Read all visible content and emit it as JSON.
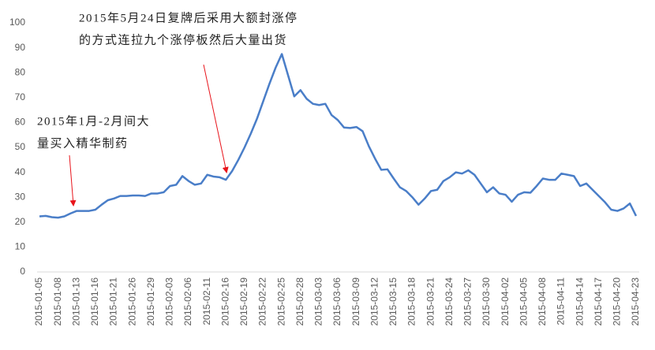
{
  "chart_data": {
    "type": "line",
    "annotations": [
      [
        "2015年5月24日复牌后采用大额封涨停",
        "的方式连拉九个涨停板然后大量出货"
      ],
      [
        "2015年1月-2月间大",
        "量买入精华制药"
      ]
    ],
    "categories": [
      "2015-01-05",
      null,
      null,
      "2015-01-08",
      null,
      null,
      "2015-01-13",
      null,
      null,
      "2015-01-16",
      null,
      null,
      "2015-01-21",
      null,
      null,
      "2015-01-26",
      null,
      null,
      "2015-01-29",
      null,
      null,
      "2015-02-03",
      null,
      null,
      "2015-02-06",
      null,
      null,
      "2015-02-11",
      null,
      null,
      "2015-02-16",
      null,
      null,
      "2015-02-19",
      null,
      null,
      "2015-02-22",
      null,
      null,
      "2015-02-25",
      null,
      null,
      "2015-02-28",
      null,
      null,
      "2015-03-03",
      null,
      null,
      "2015-03-06",
      null,
      null,
      "2015-03-09",
      null,
      null,
      "2015-03-12",
      null,
      null,
      "2015-03-15",
      null,
      null,
      "2015-03-18",
      null,
      null,
      "2015-03-21",
      null,
      null,
      "2015-03-24",
      null,
      null,
      "2015-03-27",
      null,
      null,
      "2015-03-30",
      null,
      null,
      "2015-04-02",
      null,
      null,
      "2015-04-05",
      null,
      null,
      "2015-04-08",
      null,
      null,
      "2015-04-11",
      null,
      null,
      "2015-04-14",
      null,
      null,
      "2015-04-17",
      null,
      null,
      "2015-04-20",
      null,
      null,
      "2015-04-23"
    ],
    "values": [
      22.3,
      22.5,
      22,
      21.8,
      22.3,
      23.5,
      24.5,
      24.5,
      24.5,
      25,
      27,
      28.8,
      29.5,
      30.5,
      30.5,
      30.7,
      30.7,
      30.5,
      31.5,
      31.5,
      32,
      34.5,
      35,
      38.5,
      36.5,
      35,
      35.5,
      39,
      38.3,
      38,
      37,
      40.5,
      45,
      50,
      55.5,
      61.5,
      68.5,
      75.5,
      82,
      87.5,
      79,
      70.5,
      73,
      69.5,
      67.5,
      67,
      67.5,
      63,
      61,
      58,
      57.8,
      58.2,
      56.5,
      50.5,
      45.5,
      41,
      41.2,
      37.5,
      34,
      32.5,
      30,
      27,
      29.5,
      32.5,
      33,
      36.5,
      38,
      40,
      39.5,
      40.8,
      39,
      35.5,
      32,
      34,
      31.5,
      31,
      28.2,
      31,
      32,
      31.8,
      34.5,
      37.5,
      37,
      37,
      39.5,
      39,
      38.5,
      34.5,
      35.5,
      33,
      30.5,
      28,
      25,
      24.5,
      25.5,
      27.5,
      22.5
    ],
    "color": "#4a7ec8",
    "ylim": [
      0,
      100
    ],
    "yticks": [
      0,
      10,
      20,
      30,
      40,
      50,
      60,
      70,
      80,
      90,
      100
    ]
  }
}
